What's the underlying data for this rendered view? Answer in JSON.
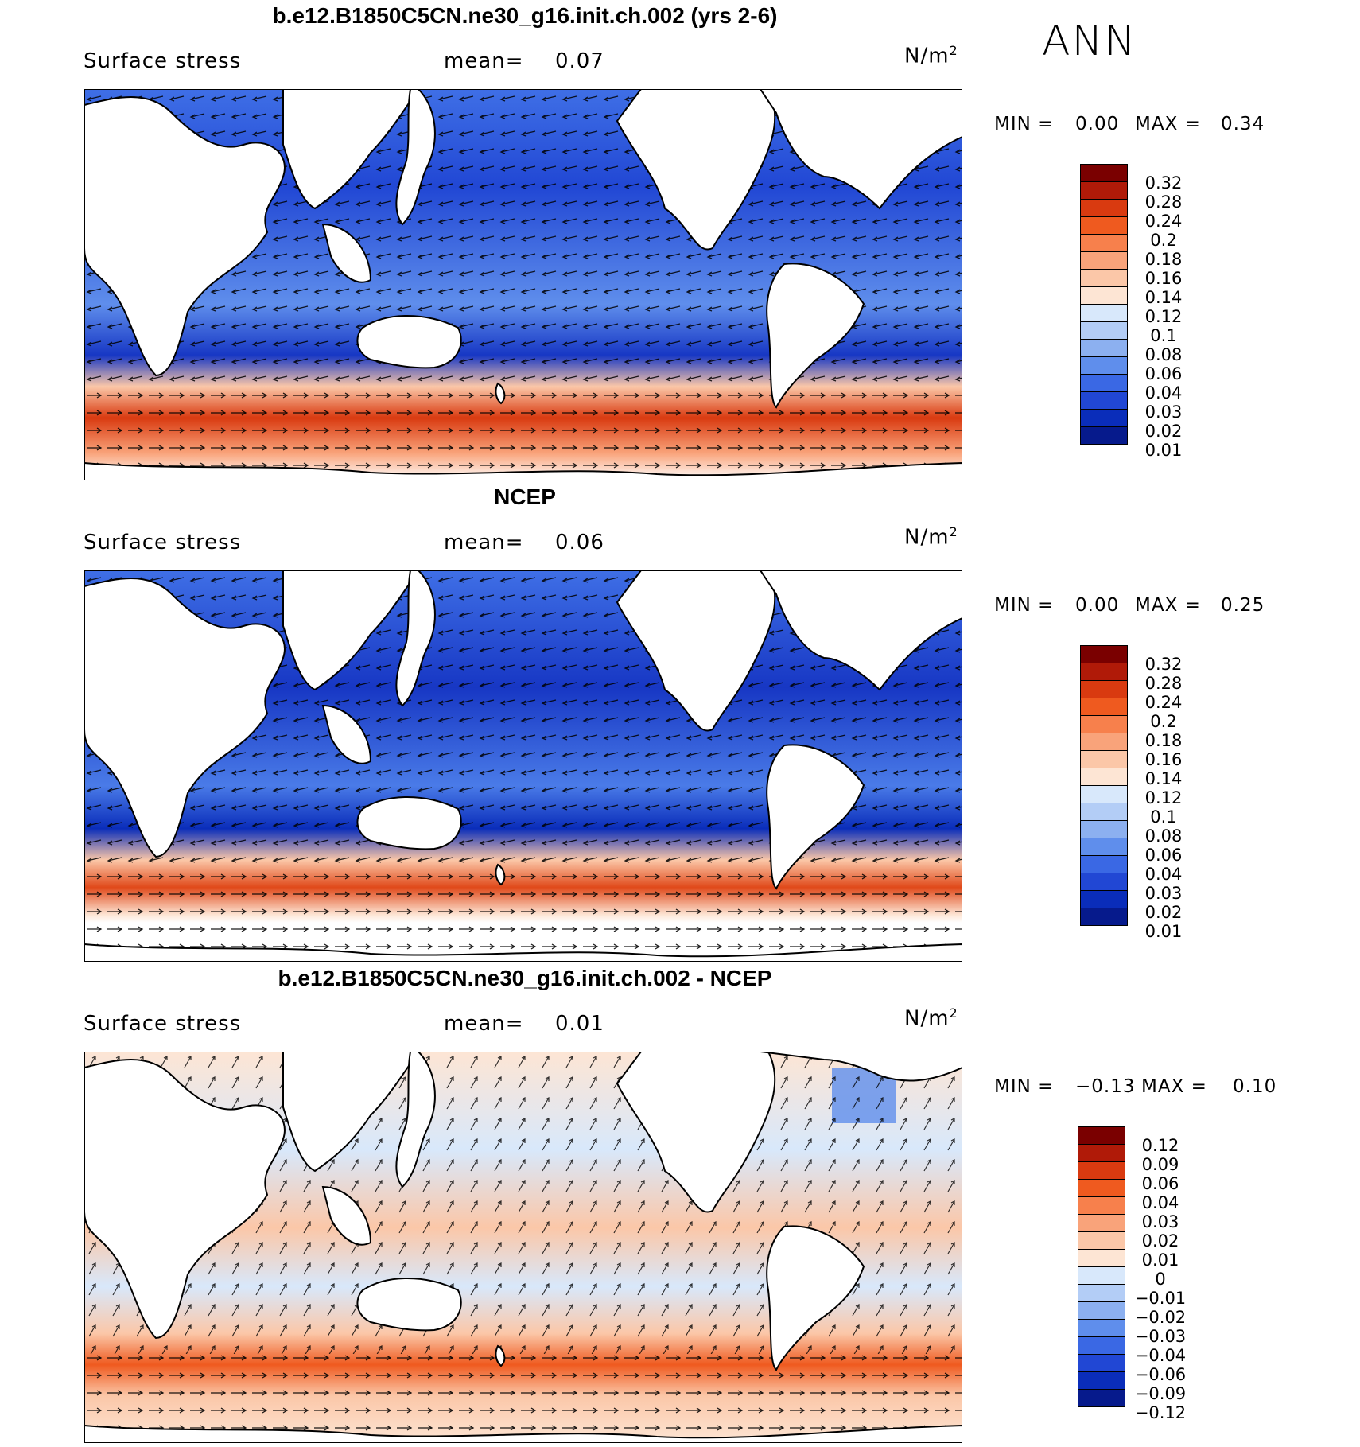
{
  "season": "ANN",
  "panels": [
    {
      "title": "b.e12.B1850C5CN.ne30_g16.init.ch.002 (yrs 2-6)",
      "left_text": "Surface stress",
      "mean_label": "mean=",
      "mean_value": "0.07",
      "units_base": "N/m",
      "units_exp": "2",
      "min_label": "MIN =",
      "min_value": "0.00",
      "max_label": "MAX =",
      "max_value": "0.34",
      "colorbar_labels": [
        "0.32",
        "0.28",
        "0.24",
        "0.2",
        "0.18",
        "0.16",
        "0.14",
        "0.12",
        "0.1",
        "0.08",
        "0.06",
        "0.04",
        "0.03",
        "0.02",
        "0.01"
      ],
      "colorbar_colors": [
        "#7a0000",
        "#b01a08",
        "#d93a10",
        "#ef5a1f",
        "#f7804c",
        "#f9a37a",
        "#fbc7a8",
        "#fde5d4",
        "#d8e8fb",
        "#b3cdf6",
        "#8cb0f0",
        "#5f8eec",
        "#3a68e4",
        "#2147d4",
        "#0a2dba",
        "#061a8c"
      ]
    },
    {
      "title": "NCEP",
      "left_text": "Surface stress",
      "mean_label": "mean=",
      "mean_value": "0.06",
      "units_base": "N/m",
      "units_exp": "2",
      "min_label": "MIN =",
      "min_value": "0.00",
      "max_label": "MAX =",
      "max_value": "0.25",
      "colorbar_labels": [
        "0.32",
        "0.28",
        "0.24",
        "0.2",
        "0.18",
        "0.16",
        "0.14",
        "0.12",
        "0.1",
        "0.08",
        "0.06",
        "0.04",
        "0.03",
        "0.02",
        "0.01"
      ],
      "colorbar_colors": [
        "#7a0000",
        "#b01a08",
        "#d93a10",
        "#ef5a1f",
        "#f7804c",
        "#f9a37a",
        "#fbc7a8",
        "#fde5d4",
        "#d8e8fb",
        "#b3cdf6",
        "#8cb0f0",
        "#5f8eec",
        "#3a68e4",
        "#2147d4",
        "#0a2dba",
        "#061a8c"
      ]
    },
    {
      "title": "b.e12.B1850C5CN.ne30_g16.init.ch.002 - NCEP",
      "left_text": "Surface stress",
      "mean_label": "mean=",
      "mean_value": "0.01",
      "units_base": "N/m",
      "units_exp": "2",
      "min_label": "MIN =",
      "min_value": "−0.13",
      "max_label": "MAX =",
      "max_value": "0.10",
      "colorbar_labels": [
        "0.12",
        "0.09",
        "0.06",
        "0.04",
        "0.03",
        "0.02",
        "0.01",
        "0",
        "−0.01",
        "−0.02",
        "−0.03",
        "−0.04",
        "−0.06",
        "−0.09",
        "−0.12"
      ],
      "colorbar_colors": [
        "#7a0000",
        "#b01a08",
        "#d93a10",
        "#ef5a1f",
        "#f7804c",
        "#f9a37a",
        "#fbc7a8",
        "#fde5d4",
        "#d8e8fb",
        "#b3cdf6",
        "#8cb0f0",
        "#5f8eec",
        "#3a68e4",
        "#2147d4",
        "#0a2dba",
        "#061a8c"
      ]
    }
  ]
}
